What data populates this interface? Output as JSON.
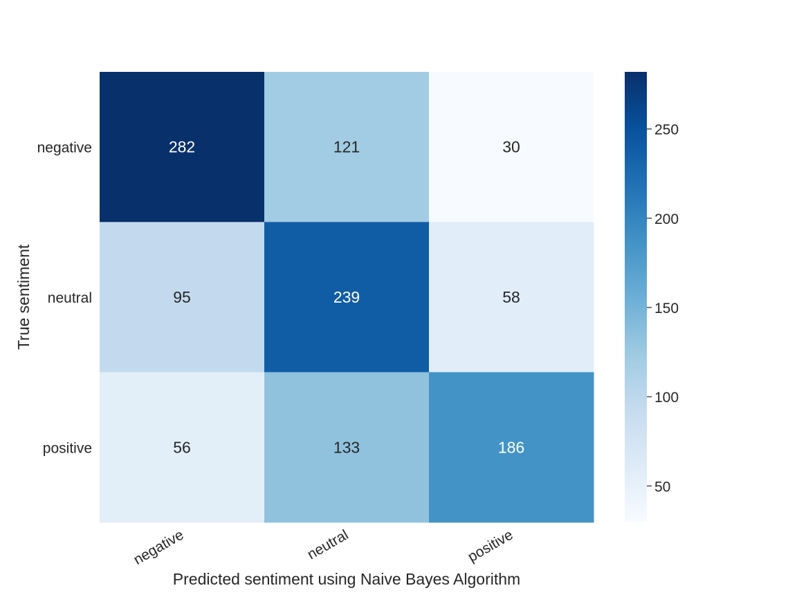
{
  "chart_data": {
    "type": "heatmap",
    "title": "",
    "xlabel": "Predicted sentiment using Naive Bayes Algorithm",
    "ylabel": "True sentiment",
    "x_categories": [
      "negative",
      "neutral",
      "positive"
    ],
    "y_categories": [
      "negative",
      "neutral",
      "positive"
    ],
    "values": [
      [
        282,
        121,
        30
      ],
      [
        95,
        239,
        58
      ],
      [
        56,
        133,
        186
      ]
    ],
    "colormap": "Blues",
    "colorbar": {
      "min": 30,
      "max": 282,
      "ticks": [
        50,
        100,
        150,
        200,
        250
      ]
    },
    "colors": {
      "low": "#f7fbff",
      "high": "#08306b",
      "text_dark": "#262626",
      "text_light": "#ffffff"
    }
  }
}
